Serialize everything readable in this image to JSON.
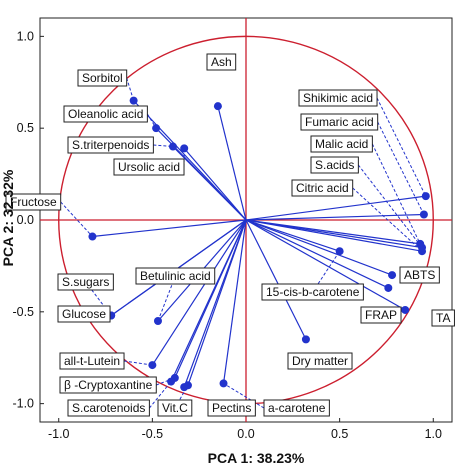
{
  "chart_data": {
    "type": "scatter",
    "xlabel": "PCA 1: 38.23%",
    "ylabel": "PCA 2: 32.32%",
    "xlim": [
      -1.1,
      1.1
    ],
    "ylim": [
      -1.1,
      1.1
    ],
    "xticks": [
      "-1.0",
      "-0.5",
      "0.0",
      "0.5",
      "1.0"
    ],
    "yticks": [
      "1.0",
      "0.5",
      "0.0",
      "-0.5",
      "-1.0"
    ],
    "circle_radius": 1.0,
    "colors": {
      "vectors": "#2233cc",
      "circle": "#cc1f2f",
      "axes": "#cc1f2f"
    },
    "points": [
      {
        "label": "Sorbitol",
        "x": -0.6,
        "y": 0.65
      },
      {
        "label": "Ash",
        "x": -0.15,
        "y": 0.62
      },
      {
        "label": "Oleanolic acid",
        "x": -0.48,
        "y": 0.5
      },
      {
        "label": "S.triterpenoids",
        "x": -0.39,
        "y": 0.4
      },
      {
        "label": "Ursolic acid",
        "x": -0.33,
        "y": 0.39
      },
      {
        "label": "Fructose",
        "x": -0.82,
        "y": -0.09
      },
      {
        "label": "Shikimic acid",
        "x": 0.96,
        "y": 0.13
      },
      {
        "label": "Fumaric acid",
        "x": 0.95,
        "y": 0.03
      },
      {
        "label": "Malic acid",
        "x": 0.93,
        "y": -0.13
      },
      {
        "label": "S.acids",
        "x": 0.94,
        "y": -0.15
      },
      {
        "label": "Citric acid",
        "x": 0.94,
        "y": -0.17
      },
      {
        "label": "ABTS",
        "x": 0.78,
        "y": -0.3
      },
      {
        "label": "FRAP",
        "x": 0.76,
        "y": -0.37
      },
      {
        "label": "TA",
        "x": 0.85,
        "y": -0.49
      },
      {
        "label": "15-cis-b-carotene",
        "x": 0.5,
        "y": -0.17
      },
      {
        "label": "Dry matter",
        "x": 0.32,
        "y": -0.65
      },
      {
        "label": "S.sugars",
        "x": -0.72,
        "y": -0.52
      },
      {
        "label": "Glucose",
        "x": -0.72,
        "y": -0.52
      },
      {
        "label": "Betulinic acid",
        "x": -0.47,
        "y": -0.55
      },
      {
        "label": "all-t-Lutein",
        "x": -0.5,
        "y": -0.79
      },
      {
        "label": "β -Cryptoxantine",
        "x": -0.38,
        "y": -0.86
      },
      {
        "label": "S.carotenoids",
        "x": -0.4,
        "y": -0.88
      },
      {
        "label": "Vit.C",
        "x": -0.31,
        "y": -0.9
      },
      {
        "label": "Pectins",
        "x": -0.33,
        "y": -0.91
      },
      {
        "label": "a-carotene",
        "x": -0.12,
        "y": -0.89
      }
    ]
  }
}
